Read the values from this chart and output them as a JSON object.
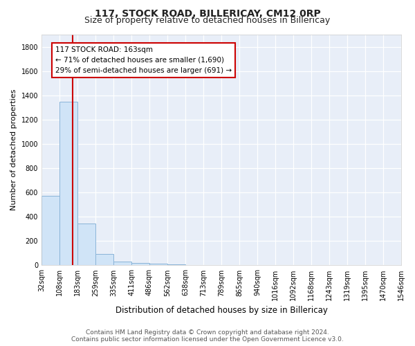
{
  "title": "117, STOCK ROAD, BILLERICAY, CM12 0RP",
  "subtitle": "Size of property relative to detached houses in Billericay",
  "xlabel": "Distribution of detached houses by size in Billericay",
  "ylabel": "Number of detached properties",
  "bar_edges": [
    32,
    108,
    183,
    259,
    335,
    411,
    486,
    562,
    638,
    713,
    789,
    865,
    940,
    1016,
    1092,
    1168,
    1243,
    1319,
    1395,
    1470,
    1546
  ],
  "bar_heights": [
    575,
    1350,
    345,
    95,
    30,
    20,
    15,
    10,
    0,
    0,
    0,
    0,
    0,
    0,
    0,
    0,
    0,
    0,
    0,
    0
  ],
  "bar_color": "#d0e4f7",
  "bar_edge_color": "#8ab4d8",
  "subject_value": 163,
  "subject_line_color": "#cc0000",
  "annotation_text": "117 STOCK ROAD: 163sqm\n← 71% of detached houses are smaller (1,690)\n29% of semi-detached houses are larger (691) →",
  "annotation_box_color": "#ffffff",
  "annotation_border_color": "#cc0000",
  "ylim": [
    0,
    1900
  ],
  "yticks": [
    0,
    200,
    400,
    600,
    800,
    1000,
    1200,
    1400,
    1600,
    1800
  ],
  "bg_color": "#ffffff",
  "plot_bg_color": "#e8eef8",
  "grid_color": "#ffffff",
  "footer_text": "Contains HM Land Registry data © Crown copyright and database right 2024.\nContains public sector information licensed under the Open Government Licence v3.0.",
  "title_fontsize": 10,
  "subtitle_fontsize": 9,
  "tick_fontsize": 7,
  "ylabel_fontsize": 8,
  "xlabel_fontsize": 8.5,
  "footer_fontsize": 6.5
}
